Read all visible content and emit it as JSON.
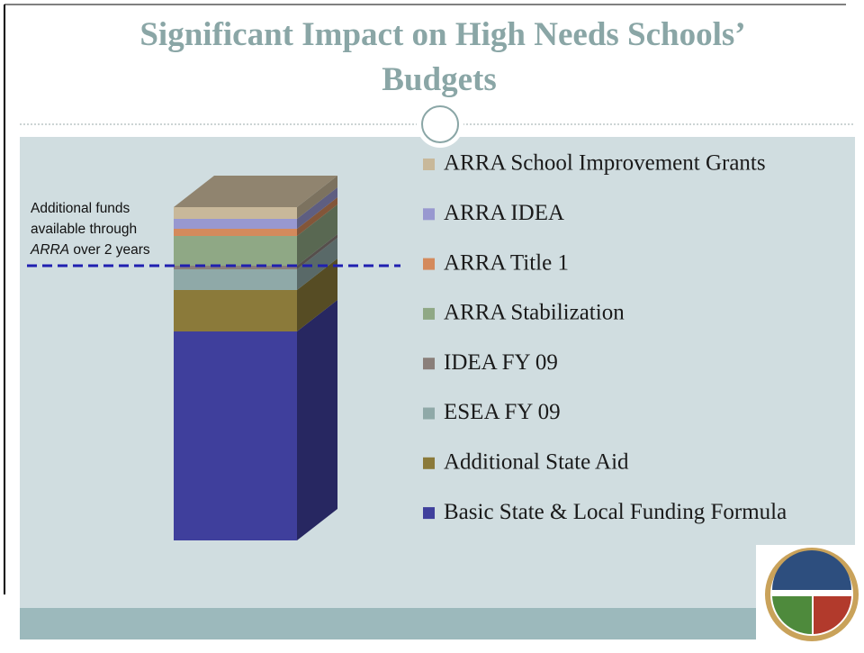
{
  "chart_data": {
    "type": "bar",
    "stacked": true,
    "title": [
      "Significant Impact on High Needs Schools’",
      "Budgets"
    ],
    "categories": [
      null
    ],
    "series": [
      {
        "name": "Basic State & Local Funding Formula",
        "color": "#3f3f9c",
        "values": [
          232
        ]
      },
      {
        "name": "Additional State Aid",
        "color": "#8b7a3a",
        "values": [
          46
        ]
      },
      {
        "name": "ESEA FY 09",
        "color": "#8fa9a8",
        "values": [
          23
        ]
      },
      {
        "name": "IDEA FY 09",
        "color": "#8a7f7a",
        "values": [
          4
        ]
      },
      {
        "name": "ARRA Stabilization",
        "color": "#8fa885",
        "values": [
          33
        ]
      },
      {
        "name": "ARRA Title 1",
        "color": "#d48a5c",
        "values": [
          8
        ]
      },
      {
        "name": "ARRA IDEA",
        "color": "#9898d0",
        "values": [
          11
        ]
      },
      {
        "name": "ARRA School Improvement Grants",
        "color": "#c8b89a",
        "values": [
          13
        ]
      }
    ],
    "annotation": [
      "Additional funds available through ",
      "ARRA",
      " over 2 years"
    ]
  }
}
